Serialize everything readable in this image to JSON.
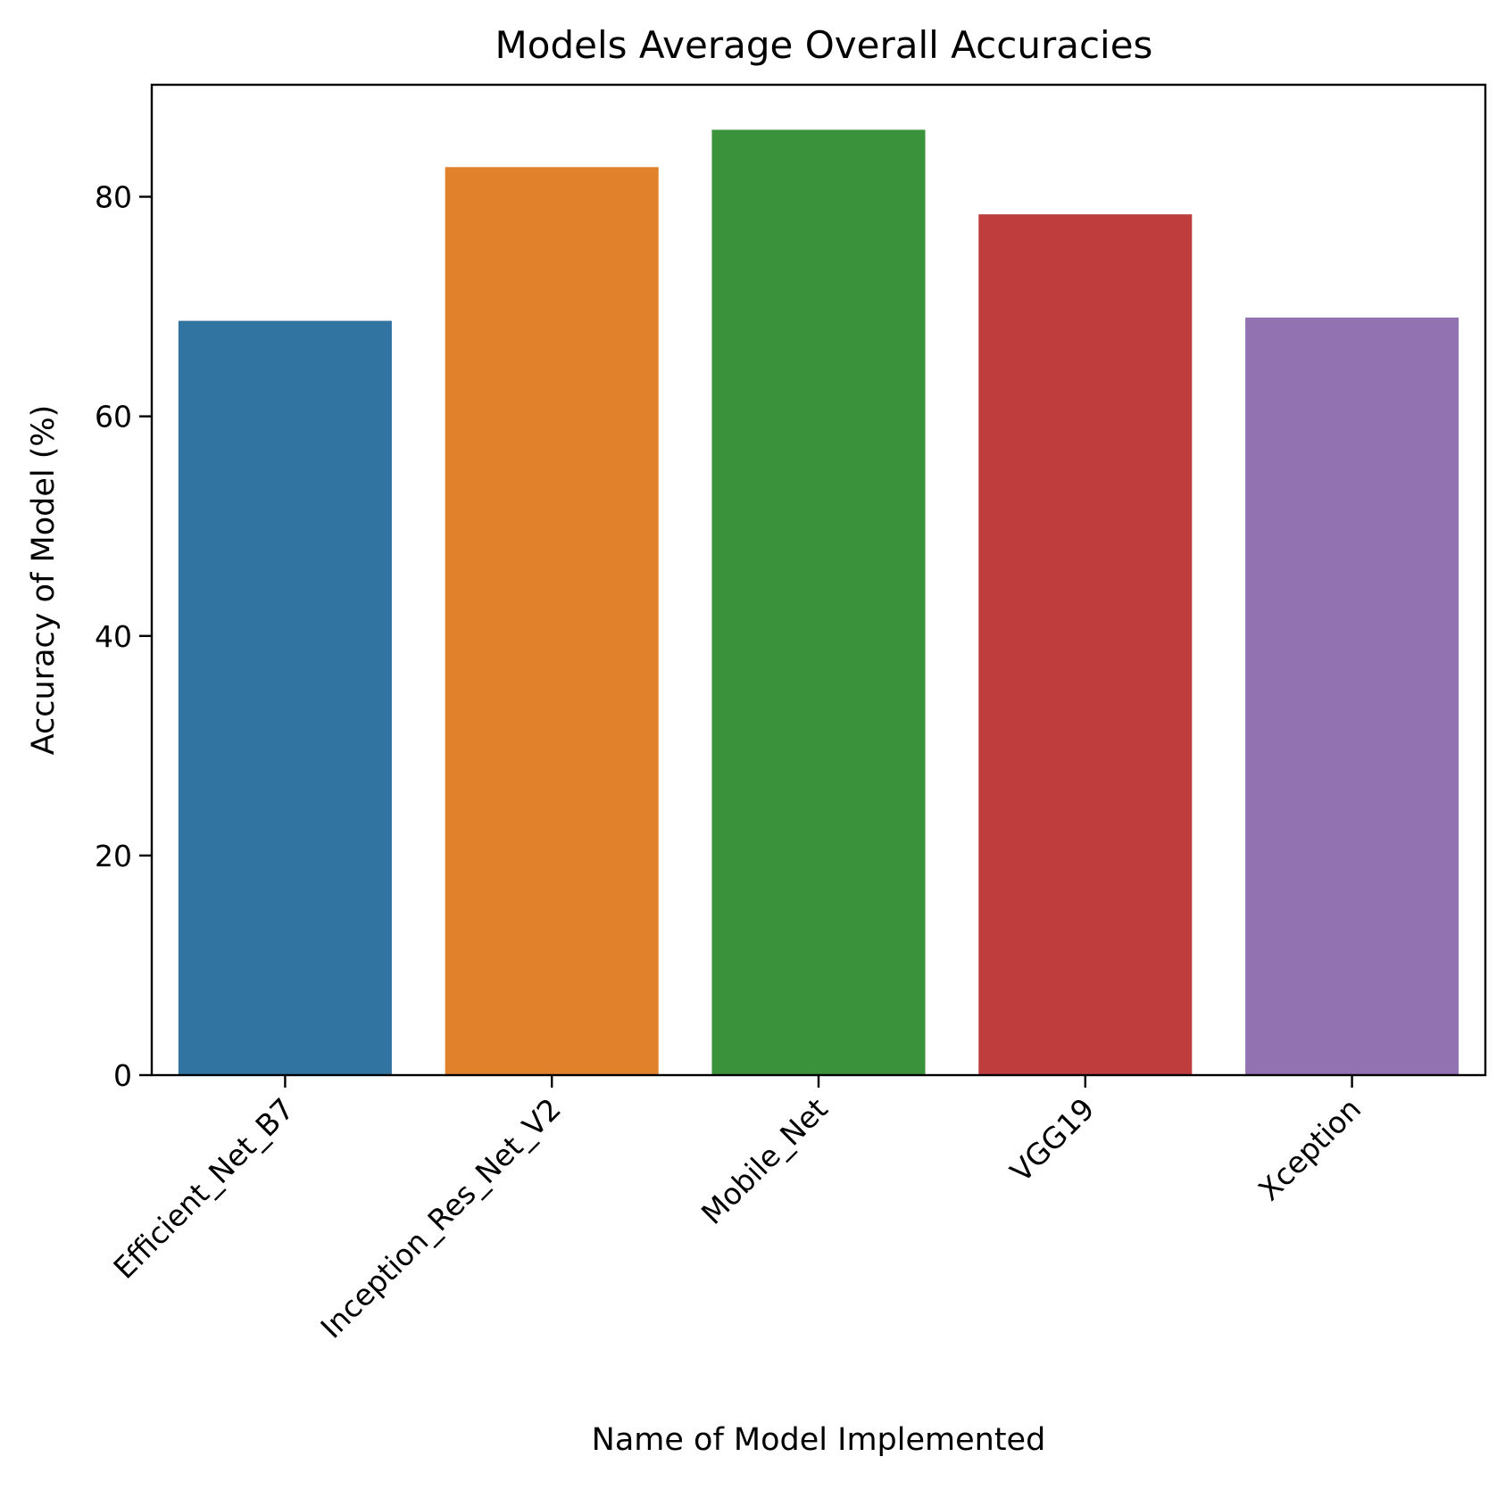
{
  "chart_data": {
    "type": "bar",
    "title": "Models Average Overall Accuracies",
    "xlabel": "Name of Model Implemented",
    "ylabel": "Accuracy of Model (%)",
    "categories": [
      "Efficient_Net_B7",
      "Inception_Res_Net_V2",
      "Mobile_Net",
      "VGG19",
      "Xception"
    ],
    "values": [
      68.7,
      82.7,
      86.1,
      78.4,
      69.0
    ],
    "colors": [
      "#3274a1",
      "#e1812c",
      "#3a923a",
      "#c03d3e",
      "#9372b2"
    ],
    "ylim": [
      0,
      90.2
    ],
    "yticks": [
      0,
      20,
      40,
      60,
      80
    ],
    "xtick_rotation": 45,
    "grid": false,
    "legend": "none"
  }
}
